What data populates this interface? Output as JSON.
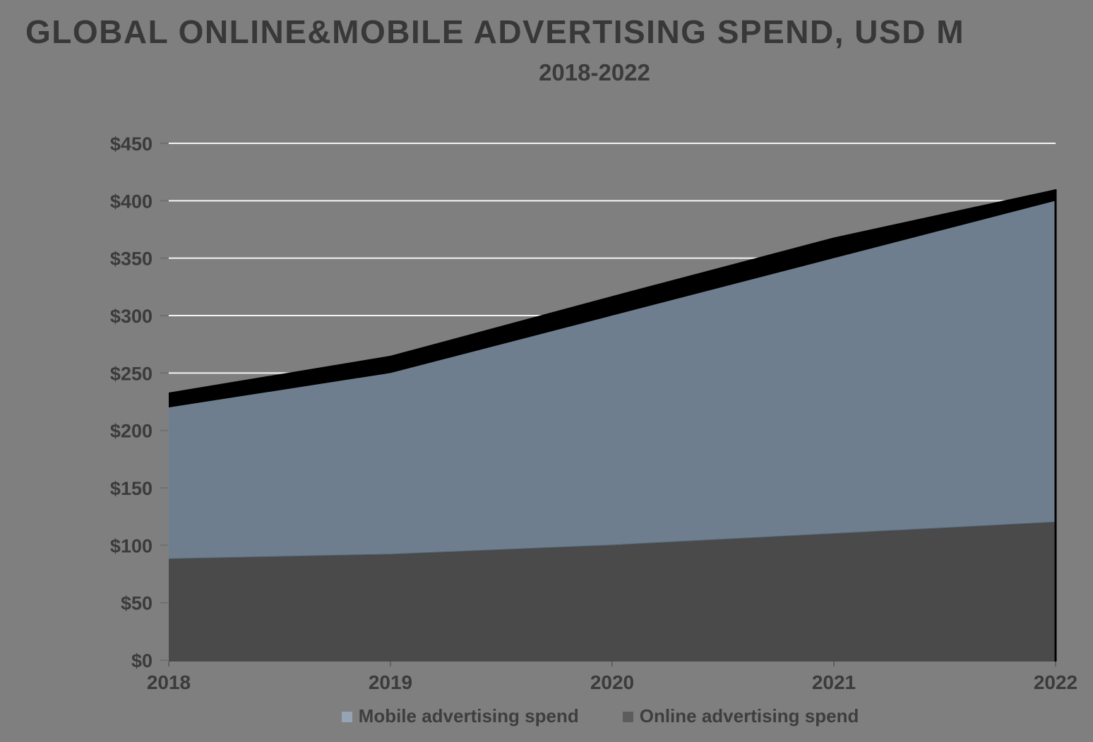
{
  "page": {
    "background": "#7F7F7F"
  },
  "header": {
    "title": "GLOBAL ONLINE&MOBILE ADVERTISING SPEND, USD M",
    "subtitle": "2018-2022"
  },
  "legend": {
    "items": [
      {
        "label": "Mobile advertising spend",
        "color": "#95A3B5"
      },
      {
        "label": "Online advertising spend",
        "color": "#5C5C5C"
      }
    ]
  },
  "chart_data": {
    "type": "area",
    "stacked": true,
    "title": "GLOBAL ONLINE&MOBILE ADVERTISING SPEND, USD M",
    "subtitle": "2018-2022",
    "categories": [
      "2018",
      "2019",
      "2020",
      "2021",
      "2022"
    ],
    "series": [
      {
        "name": "Online advertising spend",
        "values": [
          88,
          92,
          100,
          110,
          120
        ],
        "fill": "#4A4A4A"
      },
      {
        "name": "Mobile advertising spend",
        "values": [
          132,
          158,
          200,
          240,
          280
        ],
        "fill": "#6E7E8E"
      }
    ],
    "stacked_totals": [
      220,
      250,
      300,
      350,
      400
    ],
    "top_border_band": {
      "fill": "#000000",
      "top_values": [
        233,
        265,
        317,
        368,
        410
      ]
    },
    "y_axis": {
      "min": 0,
      "max": 450,
      "step": 50,
      "tick_labels": [
        "$0",
        "$50",
        "$100",
        "$150",
        "$200",
        "$250",
        "$300",
        "$350",
        "$400",
        "$450"
      ]
    },
    "x_axis": {
      "labels": [
        "2018",
        "2019",
        "2020",
        "2021",
        "2022"
      ]
    },
    "grid": {
      "visible": true,
      "color": "#F6F5F3"
    },
    "legend_position": "bottom",
    "axis_label_color": "#3B3B3B",
    "boundary_line_color": "#3F474F"
  }
}
